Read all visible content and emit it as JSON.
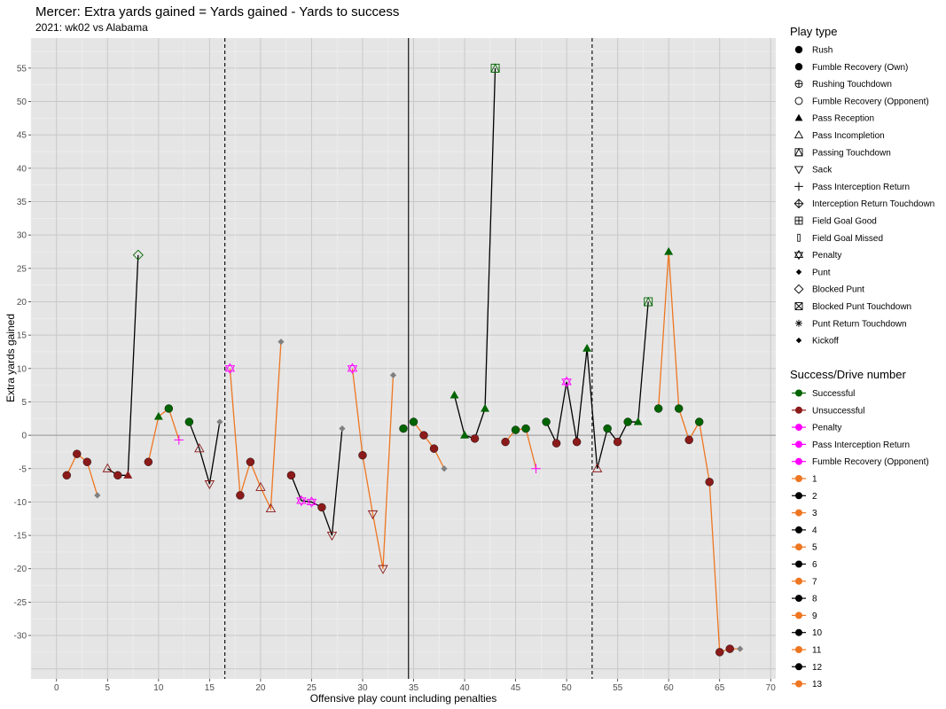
{
  "chart_data": {
    "type": "line",
    "title": "Mercer: Extra yards gained = Yards gained - Yards to success",
    "subtitle": "2021: wk02 vs Alabama",
    "xlabel": "Offensive play count including penalties",
    "ylabel": "Extra yards gained",
    "xlim": [
      -2.5,
      70.5
    ],
    "ylim": [
      -36.5,
      59.5
    ],
    "xticks": [
      0,
      5,
      10,
      15,
      20,
      25,
      30,
      35,
      40,
      45,
      50,
      55,
      60,
      65,
      70
    ],
    "yticks": [
      -30,
      -25,
      -20,
      -15,
      -10,
      -5,
      0,
      5,
      10,
      15,
      20,
      25,
      30,
      35,
      40,
      45,
      50,
      55
    ],
    "grid": true,
    "hlines": [
      0
    ],
    "vlines_dashed": [
      16.5,
      52.5
    ],
    "vlines_solid": [
      34.5
    ],
    "colors": {
      "Successful": "#006400",
      "Unsuccessful": "#8b1a1a",
      "Penalty": "#ff00ff",
      "Other": "#808080",
      "drive_odd": "#ee7621",
      "drive_even": "#000000"
    },
    "drives": [
      {
        "name": "1",
        "points": [
          [
            1,
            -6
          ],
          [
            2,
            -2.8
          ],
          [
            3,
            -4
          ],
          [
            4,
            -9
          ]
        ]
      },
      {
        "name": "2",
        "points": [
          [
            5,
            -5
          ],
          [
            6,
            -6
          ],
          [
            7,
            -6
          ],
          [
            8,
            27
          ]
        ]
      },
      {
        "name": "3",
        "points": [
          [
            9,
            -4
          ],
          [
            10,
            2.8
          ],
          [
            11,
            4
          ],
          [
            12,
            -0.7
          ]
        ]
      },
      {
        "name": "4",
        "points": [
          [
            13,
            2
          ],
          [
            14,
            -2
          ],
          [
            15,
            -7.3
          ],
          [
            16,
            2
          ]
        ]
      },
      {
        "name": "5",
        "points": [
          [
            17,
            10
          ],
          [
            18,
            -9
          ],
          [
            19,
            -4
          ],
          [
            20,
            -7.8
          ],
          [
            21,
            -11
          ],
          [
            22,
            14
          ]
        ]
      },
      {
        "name": "6",
        "points": [
          [
            23,
            -6
          ],
          [
            24,
            -9.8
          ],
          [
            25,
            -10
          ],
          [
            26,
            -10.8
          ],
          [
            27,
            -15
          ],
          [
            28,
            1
          ]
        ]
      },
      {
        "name": "7",
        "points": [
          [
            29,
            10
          ],
          [
            30,
            -3
          ],
          [
            31,
            -11.8
          ],
          [
            32,
            -20
          ],
          [
            33,
            9
          ]
        ]
      },
      {
        "name": "8",
        "points": [
          [
            34,
            1
          ]
        ]
      },
      {
        "name": "9",
        "points": [
          [
            35,
            2
          ],
          [
            36,
            0
          ],
          [
            37,
            -2
          ],
          [
            38,
            -5
          ]
        ]
      },
      {
        "name": "10",
        "points": [
          [
            39,
            6
          ],
          [
            40,
            0
          ],
          [
            41,
            -0.5
          ],
          [
            42,
            4
          ],
          [
            43,
            55
          ]
        ]
      },
      {
        "name": "11",
        "points": [
          [
            44,
            -1
          ],
          [
            45,
            0.8
          ],
          [
            46,
            1
          ],
          [
            47,
            -5
          ]
        ]
      },
      {
        "name": "12",
        "points": [
          [
            48,
            2
          ],
          [
            49,
            -1.2
          ],
          [
            50,
            8
          ],
          [
            51,
            -1
          ],
          [
            52,
            13
          ],
          [
            53,
            -5
          ],
          [
            54,
            1
          ],
          [
            55,
            -1
          ],
          [
            56,
            2
          ],
          [
            57,
            2
          ],
          [
            58,
            20
          ]
        ]
      },
      {
        "name": "13",
        "points": [
          [
            59,
            4
          ],
          [
            60,
            27.5
          ],
          [
            61,
            4
          ],
          [
            62,
            -0.7
          ],
          [
            63,
            2
          ],
          [
            64,
            -7
          ],
          [
            65,
            -32.5
          ],
          [
            66,
            -32
          ],
          [
            67,
            -32
          ]
        ]
      }
    ],
    "points": [
      {
        "x": 1,
        "y": -6,
        "shape": "circle",
        "status": "Unsuccessful"
      },
      {
        "x": 2,
        "y": -2.8,
        "shape": "circle",
        "status": "Unsuccessful"
      },
      {
        "x": 3,
        "y": -4,
        "shape": "circle",
        "status": "Unsuccessful"
      },
      {
        "x": 4,
        "y": -9,
        "shape": "diamond",
        "status": "Other"
      },
      {
        "x": 5,
        "y": -5,
        "shape": "tri-open",
        "status": "Unsuccessful"
      },
      {
        "x": 6,
        "y": -6,
        "shape": "circle",
        "status": "Unsuccessful"
      },
      {
        "x": 7,
        "y": -6,
        "shape": "triangle",
        "status": "Unsuccessful"
      },
      {
        "x": 8,
        "y": 27,
        "shape": "diamond-open",
        "status": "Successful"
      },
      {
        "x": 9,
        "y": -4,
        "shape": "circle",
        "status": "Unsuccessful"
      },
      {
        "x": 10,
        "y": 2.8,
        "shape": "triangle",
        "status": "Successful"
      },
      {
        "x": 11,
        "y": 4,
        "shape": "circle",
        "status": "Successful"
      },
      {
        "x": 12,
        "y": -0.7,
        "shape": "plus",
        "status": "Penalty"
      },
      {
        "x": 13,
        "y": 2,
        "shape": "circle",
        "status": "Successful"
      },
      {
        "x": 14,
        "y": -2,
        "shape": "tri-open",
        "status": "Unsuccessful"
      },
      {
        "x": 15,
        "y": -7.3,
        "shape": "tri-down-open",
        "status": "Unsuccessful"
      },
      {
        "x": 16,
        "y": 2,
        "shape": "diamond",
        "status": "Other"
      },
      {
        "x": 17,
        "y": 10,
        "shape": "star-open",
        "status": "Penalty"
      },
      {
        "x": 18,
        "y": -9,
        "shape": "circle",
        "status": "Unsuccessful"
      },
      {
        "x": 19,
        "y": -4,
        "shape": "circle",
        "status": "Unsuccessful"
      },
      {
        "x": 20,
        "y": -7.8,
        "shape": "tri-open",
        "status": "Unsuccessful"
      },
      {
        "x": 21,
        "y": -11,
        "shape": "tri-open",
        "status": "Unsuccessful"
      },
      {
        "x": 22,
        "y": 14,
        "shape": "diamond",
        "status": "Other"
      },
      {
        "x": 23,
        "y": -6,
        "shape": "circle",
        "status": "Unsuccessful"
      },
      {
        "x": 24,
        "y": -9.8,
        "shape": "star-open",
        "status": "Penalty"
      },
      {
        "x": 25,
        "y": -10,
        "shape": "star-open",
        "status": "Penalty"
      },
      {
        "x": 26,
        "y": -10.8,
        "shape": "circle",
        "status": "Unsuccessful"
      },
      {
        "x": 27,
        "y": -15,
        "shape": "tri-down-open",
        "status": "Unsuccessful"
      },
      {
        "x": 28,
        "y": 1,
        "shape": "diamond",
        "status": "Other"
      },
      {
        "x": 29,
        "y": 10,
        "shape": "star-open",
        "status": "Penalty"
      },
      {
        "x": 30,
        "y": -3,
        "shape": "circle",
        "status": "Unsuccessful"
      },
      {
        "x": 31,
        "y": -11.8,
        "shape": "tri-down-open",
        "status": "Unsuccessful"
      },
      {
        "x": 32,
        "y": -20,
        "shape": "tri-down-open",
        "status": "Unsuccessful"
      },
      {
        "x": 33,
        "y": 9,
        "shape": "diamond",
        "status": "Other"
      },
      {
        "x": 34,
        "y": 1,
        "shape": "circle",
        "status": "Successful"
      },
      {
        "x": 35,
        "y": 2,
        "shape": "circle",
        "status": "Successful"
      },
      {
        "x": 36,
        "y": 0,
        "shape": "circle",
        "status": "Unsuccessful"
      },
      {
        "x": 37,
        "y": -2,
        "shape": "circle",
        "status": "Unsuccessful"
      },
      {
        "x": 38,
        "y": -5,
        "shape": "diamond",
        "status": "Other"
      },
      {
        "x": 39,
        "y": 6,
        "shape": "triangle",
        "status": "Successful"
      },
      {
        "x": 40,
        "y": 0,
        "shape": "triangle",
        "status": "Successful"
      },
      {
        "x": 41,
        "y": -0.5,
        "shape": "circle",
        "status": "Unsuccessful"
      },
      {
        "x": 42,
        "y": 4,
        "shape": "triangle",
        "status": "Successful"
      },
      {
        "x": 43,
        "y": 55,
        "shape": "square-open",
        "status": "Successful"
      },
      {
        "x": 44,
        "y": -1,
        "shape": "circle",
        "status": "Unsuccessful"
      },
      {
        "x": 45,
        "y": 0.8,
        "shape": "circle",
        "status": "Successful"
      },
      {
        "x": 46,
        "y": 1,
        "shape": "circle",
        "status": "Successful"
      },
      {
        "x": 47,
        "y": -5,
        "shape": "plus",
        "status": "Penalty"
      },
      {
        "x": 48,
        "y": 2,
        "shape": "circle",
        "status": "Successful"
      },
      {
        "x": 49,
        "y": -1.2,
        "shape": "circle",
        "status": "Unsuccessful"
      },
      {
        "x": 50,
        "y": 8,
        "shape": "star-open",
        "status": "Penalty"
      },
      {
        "x": 51,
        "y": -1,
        "shape": "circle",
        "status": "Unsuccessful"
      },
      {
        "x": 52,
        "y": 13,
        "shape": "triangle",
        "status": "Successful"
      },
      {
        "x": 53,
        "y": -5,
        "shape": "tri-open",
        "status": "Unsuccessful"
      },
      {
        "x": 54,
        "y": 1,
        "shape": "circle",
        "status": "Successful"
      },
      {
        "x": 55,
        "y": -1,
        "shape": "circle",
        "status": "Unsuccessful"
      },
      {
        "x": 56,
        "y": 2,
        "shape": "circle",
        "status": "Successful"
      },
      {
        "x": 57,
        "y": 2,
        "shape": "triangle",
        "status": "Successful"
      },
      {
        "x": 58,
        "y": 20,
        "shape": "square-open",
        "status": "Successful"
      },
      {
        "x": 59,
        "y": 4,
        "shape": "circle",
        "status": "Successful"
      },
      {
        "x": 60,
        "y": 27.5,
        "shape": "triangle",
        "status": "Successful"
      },
      {
        "x": 61,
        "y": 4,
        "shape": "circle",
        "status": "Successful"
      },
      {
        "x": 62,
        "y": -0.7,
        "shape": "circle",
        "status": "Unsuccessful"
      },
      {
        "x": 63,
        "y": 2,
        "shape": "circle",
        "status": "Successful"
      },
      {
        "x": 64,
        "y": -7,
        "shape": "circle",
        "status": "Unsuccessful"
      },
      {
        "x": 65,
        "y": -32.5,
        "shape": "circle",
        "status": "Unsuccessful"
      },
      {
        "x": 66,
        "y": -32,
        "shape": "circle",
        "status": "Unsuccessful"
      },
      {
        "x": 67,
        "y": -32,
        "shape": "diamond",
        "status": "Other"
      }
    ],
    "legend": {
      "position": "right",
      "play_type_title": "Play type",
      "play_types": [
        {
          "label": "Rush",
          "icon": "circle"
        },
        {
          "label": "Fumble Recovery (Own)",
          "icon": "circle"
        },
        {
          "label": "Rushing Touchdown",
          "icon": "circle-plus"
        },
        {
          "label": "Fumble Recovery (Opponent)",
          "icon": "circle-open"
        },
        {
          "label": "Pass Reception",
          "icon": "triangle"
        },
        {
          "label": "Pass Incompletion",
          "icon": "tri-open"
        },
        {
          "label": "Passing Touchdown",
          "icon": "square-tri"
        },
        {
          "label": "Sack",
          "icon": "tri-down-open"
        },
        {
          "label": "Pass Interception Return",
          "icon": "plus"
        },
        {
          "label": "Interception Return Touchdown",
          "icon": "diamond-plus"
        },
        {
          "label": "Field Goal Good",
          "icon": "square-plus"
        },
        {
          "label": "Field Goal Missed",
          "icon": "bar"
        },
        {
          "label": "Penalty",
          "icon": "star-open"
        },
        {
          "label": "Punt",
          "icon": "diamond"
        },
        {
          "label": "Blocked Punt",
          "icon": "diamond-open"
        },
        {
          "label": "Blocked Punt Touchdown",
          "icon": "square-x"
        },
        {
          "label": "Punt Return Touchdown",
          "icon": "asterisk"
        },
        {
          "label": "Kickoff",
          "icon": "diamond"
        }
      ],
      "success_title": "Success/Drive number",
      "success_items": [
        {
          "label": "Successful",
          "color": "#006400"
        },
        {
          "label": "Unsuccessful",
          "color": "#8b1a1a"
        },
        {
          "label": "Penalty",
          "color": "#ff00ff"
        },
        {
          "label": "Pass Interception Return",
          "color": "#ff00ff"
        },
        {
          "label": "Fumble Recovery (Opponent)",
          "color": "#ff00ff"
        },
        {
          "label": "1",
          "color": "#ee7621"
        },
        {
          "label": "2",
          "color": "#000000"
        },
        {
          "label": "3",
          "color": "#ee7621"
        },
        {
          "label": "4",
          "color": "#000000"
        },
        {
          "label": "5",
          "color": "#ee7621"
        },
        {
          "label": "6",
          "color": "#000000"
        },
        {
          "label": "7",
          "color": "#ee7621"
        },
        {
          "label": "8",
          "color": "#000000"
        },
        {
          "label": "9",
          "color": "#ee7621"
        },
        {
          "label": "10",
          "color": "#000000"
        },
        {
          "label": "11",
          "color": "#ee7621"
        },
        {
          "label": "12",
          "color": "#000000"
        },
        {
          "label": "13",
          "color": "#ee7621"
        }
      ]
    }
  }
}
